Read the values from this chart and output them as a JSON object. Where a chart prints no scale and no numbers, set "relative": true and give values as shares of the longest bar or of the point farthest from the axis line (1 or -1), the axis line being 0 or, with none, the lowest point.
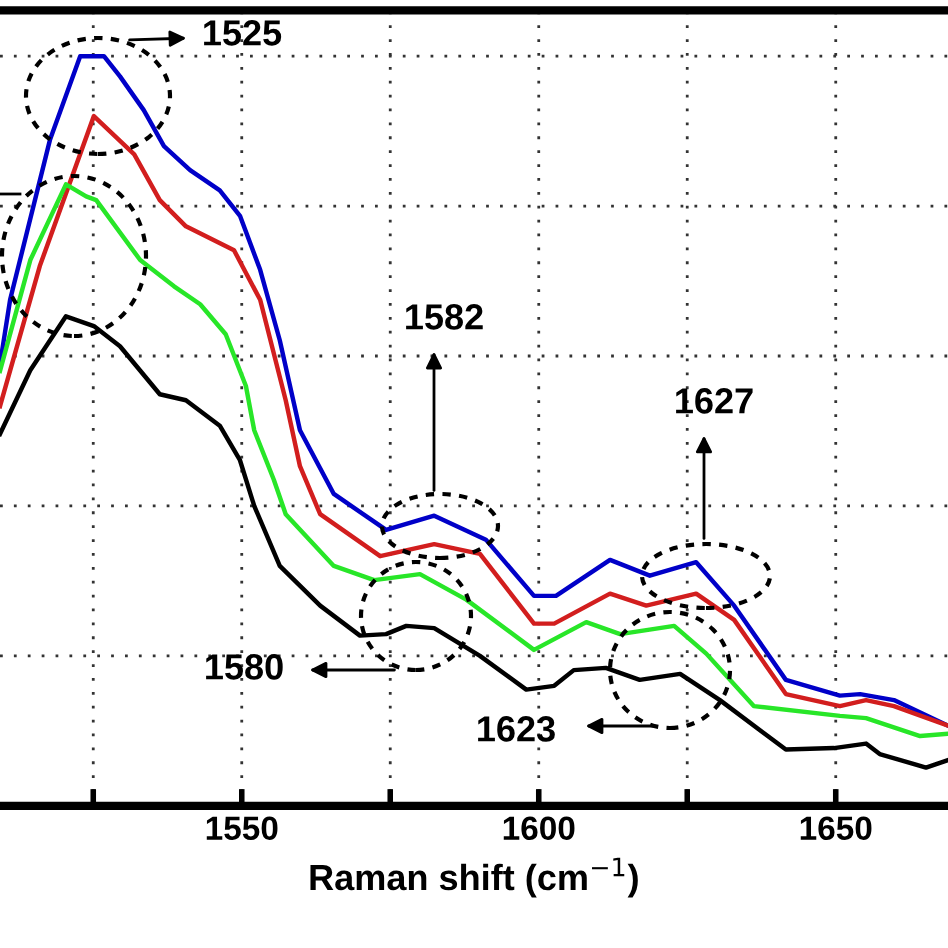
{
  "chart_data": {
    "type": "line",
    "relative": true,
    "xlabel": "Raman shift (cm$^{−1}$)",
    "xlim": [
      1509.3,
      1668.9
    ],
    "xticks": [
      {
        "value": 1525,
        "label": null
      },
      1550,
      {
        "value": 1575,
        "label": null
      },
      1600,
      {
        "value": 1625,
        "label": null
      },
      1650
    ],
    "tick_labels": "x",
    "grid": true,
    "line_style": "solid",
    "marker": "none",
    "series": [
      {
        "color": "#0000c8",
        "x": [
          1509.3,
          1511.0,
          1517.7,
          1522.8,
          1526.8,
          1529.5,
          1533.5,
          1536.9,
          1541.3,
          1546.3,
          1549.7,
          1553.1,
          1556.4,
          1559.8,
          1565.5,
          1574.3,
          1582.4,
          1591.1,
          1599.2,
          1602.9,
          1612.0,
          1618.7,
          1626.5,
          1632.9,
          1641.6,
          1650.7,
          1654.1,
          1659.8,
          1668.9
        ],
        "values": [
          0.589,
          0.675,
          0.888,
          1.0,
          1.0,
          0.973,
          0.928,
          0.88,
          0.848,
          0.821,
          0.787,
          0.715,
          0.621,
          0.501,
          0.416,
          0.368,
          0.387,
          0.355,
          0.28,
          0.28,
          0.328,
          0.307,
          0.325,
          0.267,
          0.168,
          0.147,
          0.149,
          0.141,
          0.107
        ]
      },
      {
        "color": "#d21e1e",
        "x": [
          1509.3,
          1516.0,
          1525.1,
          1531.9,
          1536.2,
          1540.6,
          1548.7,
          1553.1,
          1557.4,
          1559.8,
          1563.2,
          1573.3,
          1582.4,
          1590.1,
          1599.2,
          1602.6,
          1612.0,
          1618.1,
          1626.5,
          1632.9,
          1641.6,
          1650.7,
          1655.1,
          1659.8,
          1668.9
        ],
        "values": [
          0.533,
          0.72,
          0.92,
          0.869,
          0.808,
          0.773,
          0.741,
          0.675,
          0.541,
          0.453,
          0.389,
          0.333,
          0.349,
          0.336,
          0.243,
          0.243,
          0.283,
          0.267,
          0.283,
          0.248,
          0.149,
          0.133,
          0.141,
          0.133,
          0.107
        ]
      },
      {
        "color": "#28e628",
        "x": [
          1509.3,
          1514.4,
          1520.4,
          1523.8,
          1525.5,
          1532.9,
          1538.6,
          1543.0,
          1547.3,
          1550.7,
          1552.1,
          1555.4,
          1557.4,
          1565.5,
          1572.3,
          1580.0,
          1587.8,
          1599.2,
          1608.0,
          1613.7,
          1622.8,
          1628.2,
          1636.2,
          1650.7,
          1655.1,
          1664.2,
          1668.9
        ],
        "values": [
          0.58,
          0.728,
          0.829,
          0.813,
          0.808,
          0.728,
          0.693,
          0.669,
          0.629,
          0.56,
          0.501,
          0.435,
          0.389,
          0.32,
          0.301,
          0.309,
          0.275,
          0.208,
          0.245,
          0.229,
          0.24,
          0.203,
          0.133,
          0.12,
          0.117,
          0.093,
          0.096
        ]
      },
      {
        "color": "#000000",
        "x": [
          1509.3,
          1514.4,
          1520.4,
          1525.1,
          1529.5,
          1536.2,
          1540.6,
          1546.3,
          1549.7,
          1552.1,
          1556.4,
          1563.2,
          1569.9,
          1574.3,
          1577.7,
          1582.4,
          1590.1,
          1597.9,
          1602.6,
          1605.9,
          1611.3,
          1617.0,
          1623.8,
          1630.5,
          1641.6,
          1649.7,
          1655.1,
          1657.4,
          1665.2,
          1668.9
        ],
        "values": [
          0.496,
          0.581,
          0.653,
          0.64,
          0.613,
          0.549,
          0.541,
          0.507,
          0.461,
          0.4,
          0.32,
          0.267,
          0.227,
          0.229,
          0.24,
          0.237,
          0.2,
          0.155,
          0.16,
          0.181,
          0.184,
          0.168,
          0.176,
          0.141,
          0.075,
          0.077,
          0.083,
          0.069,
          0.051,
          0.061
        ]
      }
    ],
    "annotations": [
      "1525",
      "1582",
      "1627",
      "1580",
      "1623"
    ]
  }
}
